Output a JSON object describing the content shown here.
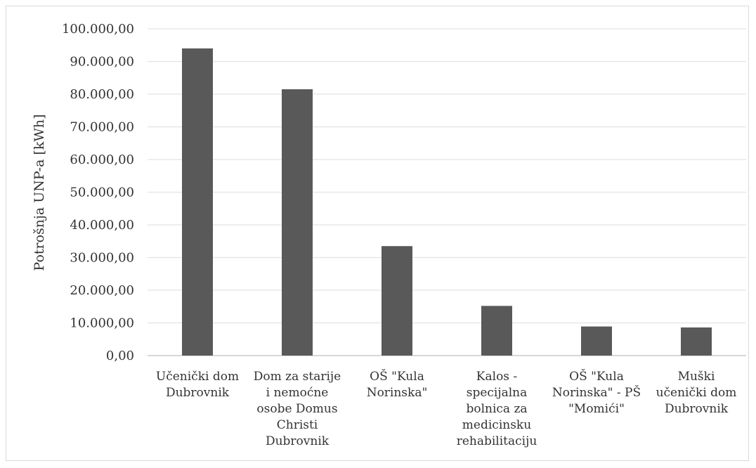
{
  "chart_data": {
    "type": "bar",
    "title": "",
    "xlabel": "",
    "ylabel": "Potrošnja UNP-a [kWh]",
    "ylim": [
      0,
      100000
    ],
    "ytick_values": [
      0,
      10000,
      20000,
      30000,
      40000,
      50000,
      60000,
      70000,
      80000,
      90000,
      100000
    ],
    "ytick_labels": [
      "0,00",
      "10.000,00",
      "20.000,00",
      "30.000,00",
      "40.000,00",
      "50.000,00",
      "60.000,00",
      "70.000,00",
      "80.000,00",
      "90.000,00",
      "100.000,00"
    ],
    "grid": true,
    "legend": "none",
    "bar_color": "#595959",
    "categories": [
      "Učenički dom Dubrovnik",
      "Dom za starije i nemoćne osobe Domus Christi Dubrovnik",
      "OŠ \"Kula Norinska\"",
      "Kalos - specijalna bolnica za medicinsku rehabilitaciju",
      "OŠ \"Kula Norinska\" - PŠ \"Momići\"",
      "Muški učenički dom Dubrovnik"
    ],
    "category_label_lines": [
      [
        "Učenički dom",
        "Dubrovnik"
      ],
      [
        "Dom za starije",
        "i nemoćne",
        "osobe Domus",
        "Christi",
        "Dubrovnik"
      ],
      [
        "OŠ \"Kula",
        "Norinska\""
      ],
      [
        "Kalos -",
        "specijalna",
        "bolnica za",
        "medicinsku",
        "rehabilitaciju"
      ],
      [
        "OŠ \"Kula",
        "Norinska\" - PŠ",
        "\"Momići\""
      ],
      [
        "Muški",
        "učenički dom",
        "Dubrovnik"
      ]
    ],
    "values": [
      94000,
      81500,
      33500,
      15200,
      8900,
      8600
    ]
  }
}
